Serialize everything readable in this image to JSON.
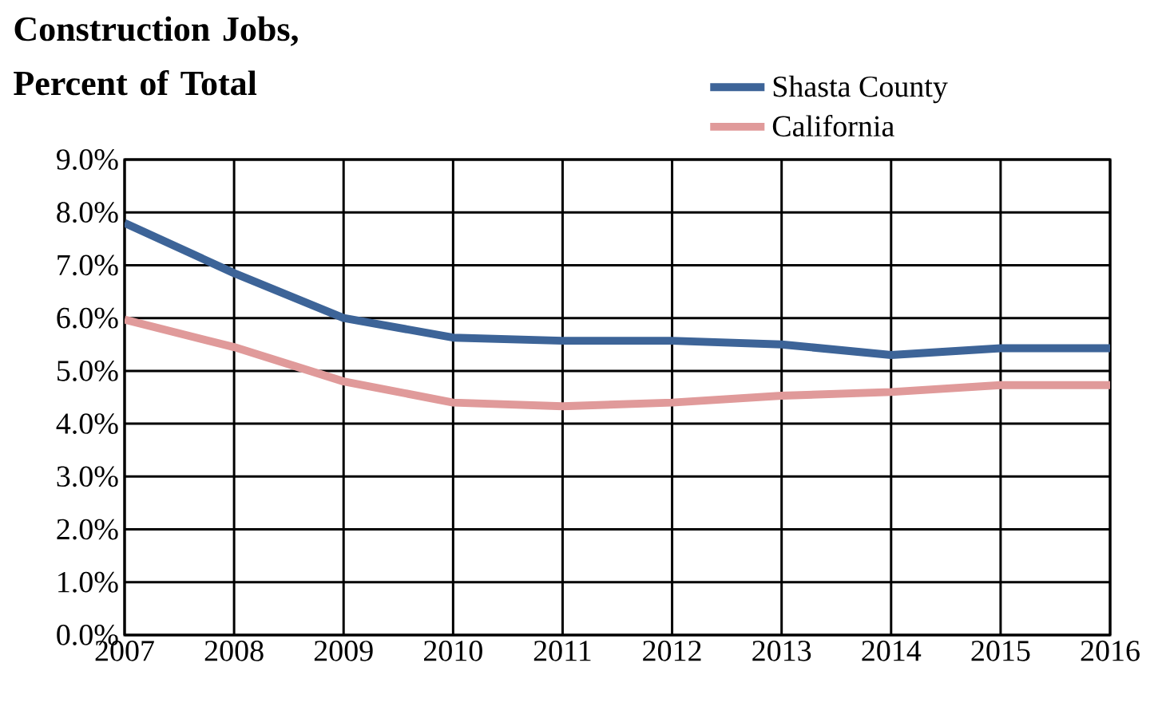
{
  "chart_data": {
    "type": "line",
    "title": "Construction Jobs, Percent of Total",
    "x": [
      2007,
      2008,
      2009,
      2010,
      2011,
      2012,
      2013,
      2014,
      2015,
      2016
    ],
    "series": [
      {
        "name": "Shasta County",
        "color": "#3d6498",
        "values": [
          7.8,
          6.85,
          6.0,
          5.63,
          5.57,
          5.57,
          5.5,
          5.3,
          5.43,
          5.43
        ]
      },
      {
        "name": "California",
        "color": "#e09a9a",
        "values": [
          5.97,
          5.45,
          4.8,
          4.4,
          4.33,
          4.4,
          4.53,
          4.6,
          4.73,
          4.73
        ]
      }
    ],
    "xlim": [
      2007,
      2016
    ],
    "ylim": [
      0,
      9
    ],
    "xticks": [
      2007,
      2008,
      2009,
      2010,
      2011,
      2012,
      2013,
      2014,
      2015,
      2016
    ],
    "yticks": [
      {
        "value": 0,
        "label": "0.0%"
      },
      {
        "value": 1,
        "label": "1.0%"
      },
      {
        "value": 2,
        "label": "2.0%"
      },
      {
        "value": 3,
        "label": "3.0%"
      },
      {
        "value": 4,
        "label": "4.0%"
      },
      {
        "value": 5,
        "label": "5.0%"
      },
      {
        "value": 6,
        "label": "6.0%"
      },
      {
        "value": 7,
        "label": "7.0%"
      },
      {
        "value": 8,
        "label": "8.0%"
      },
      {
        "value": 9,
        "label": "9.0%"
      }
    ],
    "grid": true,
    "legend": "top right"
  }
}
